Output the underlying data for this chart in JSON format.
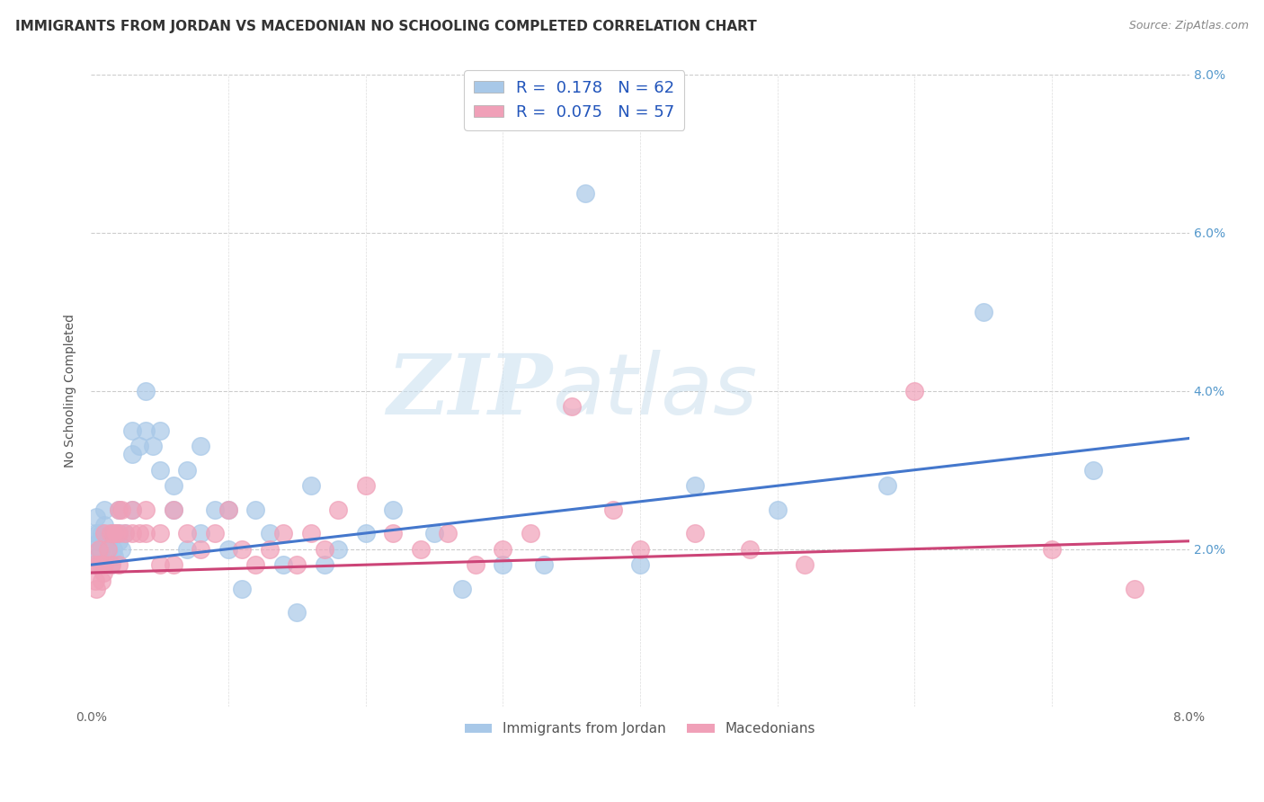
{
  "title": "IMMIGRANTS FROM JORDAN VS MACEDONIAN NO SCHOOLING COMPLETED CORRELATION CHART",
  "source": "Source: ZipAtlas.com",
  "ylabel": "No Schooling Completed",
  "xlabel": "",
  "xlim": [
    0.0,
    0.08
  ],
  "ylim": [
    0.0,
    0.08
  ],
  "series": [
    {
      "label": "Immigrants from Jordan",
      "R": 0.178,
      "N": 62,
      "color": "#a8c8e8",
      "line_color": "#4477cc",
      "x": [
        0.0002,
        0.0003,
        0.0004,
        0.0005,
        0.0005,
        0.0006,
        0.0007,
        0.0008,
        0.0009,
        0.001,
        0.001,
        0.0012,
        0.0013,
        0.0014,
        0.0015,
        0.0016,
        0.0017,
        0.0018,
        0.002,
        0.002,
        0.002,
        0.0022,
        0.0025,
        0.003,
        0.003,
        0.003,
        0.0035,
        0.004,
        0.004,
        0.0045,
        0.005,
        0.005,
        0.006,
        0.006,
        0.007,
        0.007,
        0.008,
        0.008,
        0.009,
        0.01,
        0.01,
        0.011,
        0.012,
        0.013,
        0.014,
        0.015,
        0.016,
        0.017,
        0.018,
        0.02,
        0.022,
        0.025,
        0.027,
        0.03,
        0.033,
        0.036,
        0.04,
        0.044,
        0.05,
        0.058,
        0.065,
        0.073
      ],
      "y": [
        0.02,
        0.022,
        0.024,
        0.019,
        0.022,
        0.021,
        0.02,
        0.022,
        0.021,
        0.025,
        0.023,
        0.021,
        0.02,
        0.018,
        0.022,
        0.02,
        0.019,
        0.022,
        0.025,
        0.022,
        0.021,
        0.02,
        0.022,
        0.035,
        0.032,
        0.025,
        0.033,
        0.04,
        0.035,
        0.033,
        0.035,
        0.03,
        0.028,
        0.025,
        0.03,
        0.02,
        0.033,
        0.022,
        0.025,
        0.025,
        0.02,
        0.015,
        0.025,
        0.022,
        0.018,
        0.012,
        0.028,
        0.018,
        0.02,
        0.022,
        0.025,
        0.022,
        0.015,
        0.018,
        0.018,
        0.065,
        0.018,
        0.028,
        0.025,
        0.028,
        0.05,
        0.03
      ]
    },
    {
      "label": "Macedonians",
      "R": 0.075,
      "N": 57,
      "color": "#f0a0b8",
      "line_color": "#cc4477",
      "x": [
        0.0002,
        0.0003,
        0.0004,
        0.0005,
        0.0006,
        0.0007,
        0.0008,
        0.0009,
        0.001,
        0.001,
        0.0012,
        0.0014,
        0.0015,
        0.0016,
        0.0018,
        0.002,
        0.002,
        0.002,
        0.0022,
        0.0025,
        0.003,
        0.003,
        0.0035,
        0.004,
        0.004,
        0.005,
        0.005,
        0.006,
        0.006,
        0.007,
        0.008,
        0.009,
        0.01,
        0.011,
        0.012,
        0.013,
        0.014,
        0.015,
        0.016,
        0.017,
        0.018,
        0.02,
        0.022,
        0.024,
        0.026,
        0.028,
        0.03,
        0.032,
        0.035,
        0.038,
        0.04,
        0.044,
        0.048,
        0.052,
        0.06,
        0.07,
        0.076
      ],
      "y": [
        0.018,
        0.016,
        0.015,
        0.018,
        0.02,
        0.018,
        0.016,
        0.017,
        0.022,
        0.018,
        0.02,
        0.022,
        0.018,
        0.022,
        0.022,
        0.025,
        0.022,
        0.018,
        0.025,
        0.022,
        0.025,
        0.022,
        0.022,
        0.025,
        0.022,
        0.022,
        0.018,
        0.025,
        0.018,
        0.022,
        0.02,
        0.022,
        0.025,
        0.02,
        0.018,
        0.02,
        0.022,
        0.018,
        0.022,
        0.02,
        0.025,
        0.028,
        0.022,
        0.02,
        0.022,
        0.018,
        0.02,
        0.022,
        0.038,
        0.025,
        0.02,
        0.022,
        0.02,
        0.018,
        0.04,
        0.02,
        0.015
      ]
    }
  ],
  "trend_lines": [
    {
      "x_start": 0.0,
      "x_end": 0.08,
      "y_start": 0.018,
      "y_end": 0.034
    },
    {
      "x_start": 0.0,
      "x_end": 0.08,
      "y_start": 0.017,
      "y_end": 0.021
    }
  ],
  "watermark_zip": "ZIP",
  "watermark_atlas": "atlas",
  "background_color": "#ffffff",
  "grid_color": "#cccccc",
  "title_fontsize": 11,
  "axis_fontsize": 10,
  "tick_fontsize": 10,
  "right_tick_color": "#5599cc",
  "legend_text_color": "#2255aa",
  "legend_r_color": "#1155cc",
  "legend_n_color": "#cc2222"
}
